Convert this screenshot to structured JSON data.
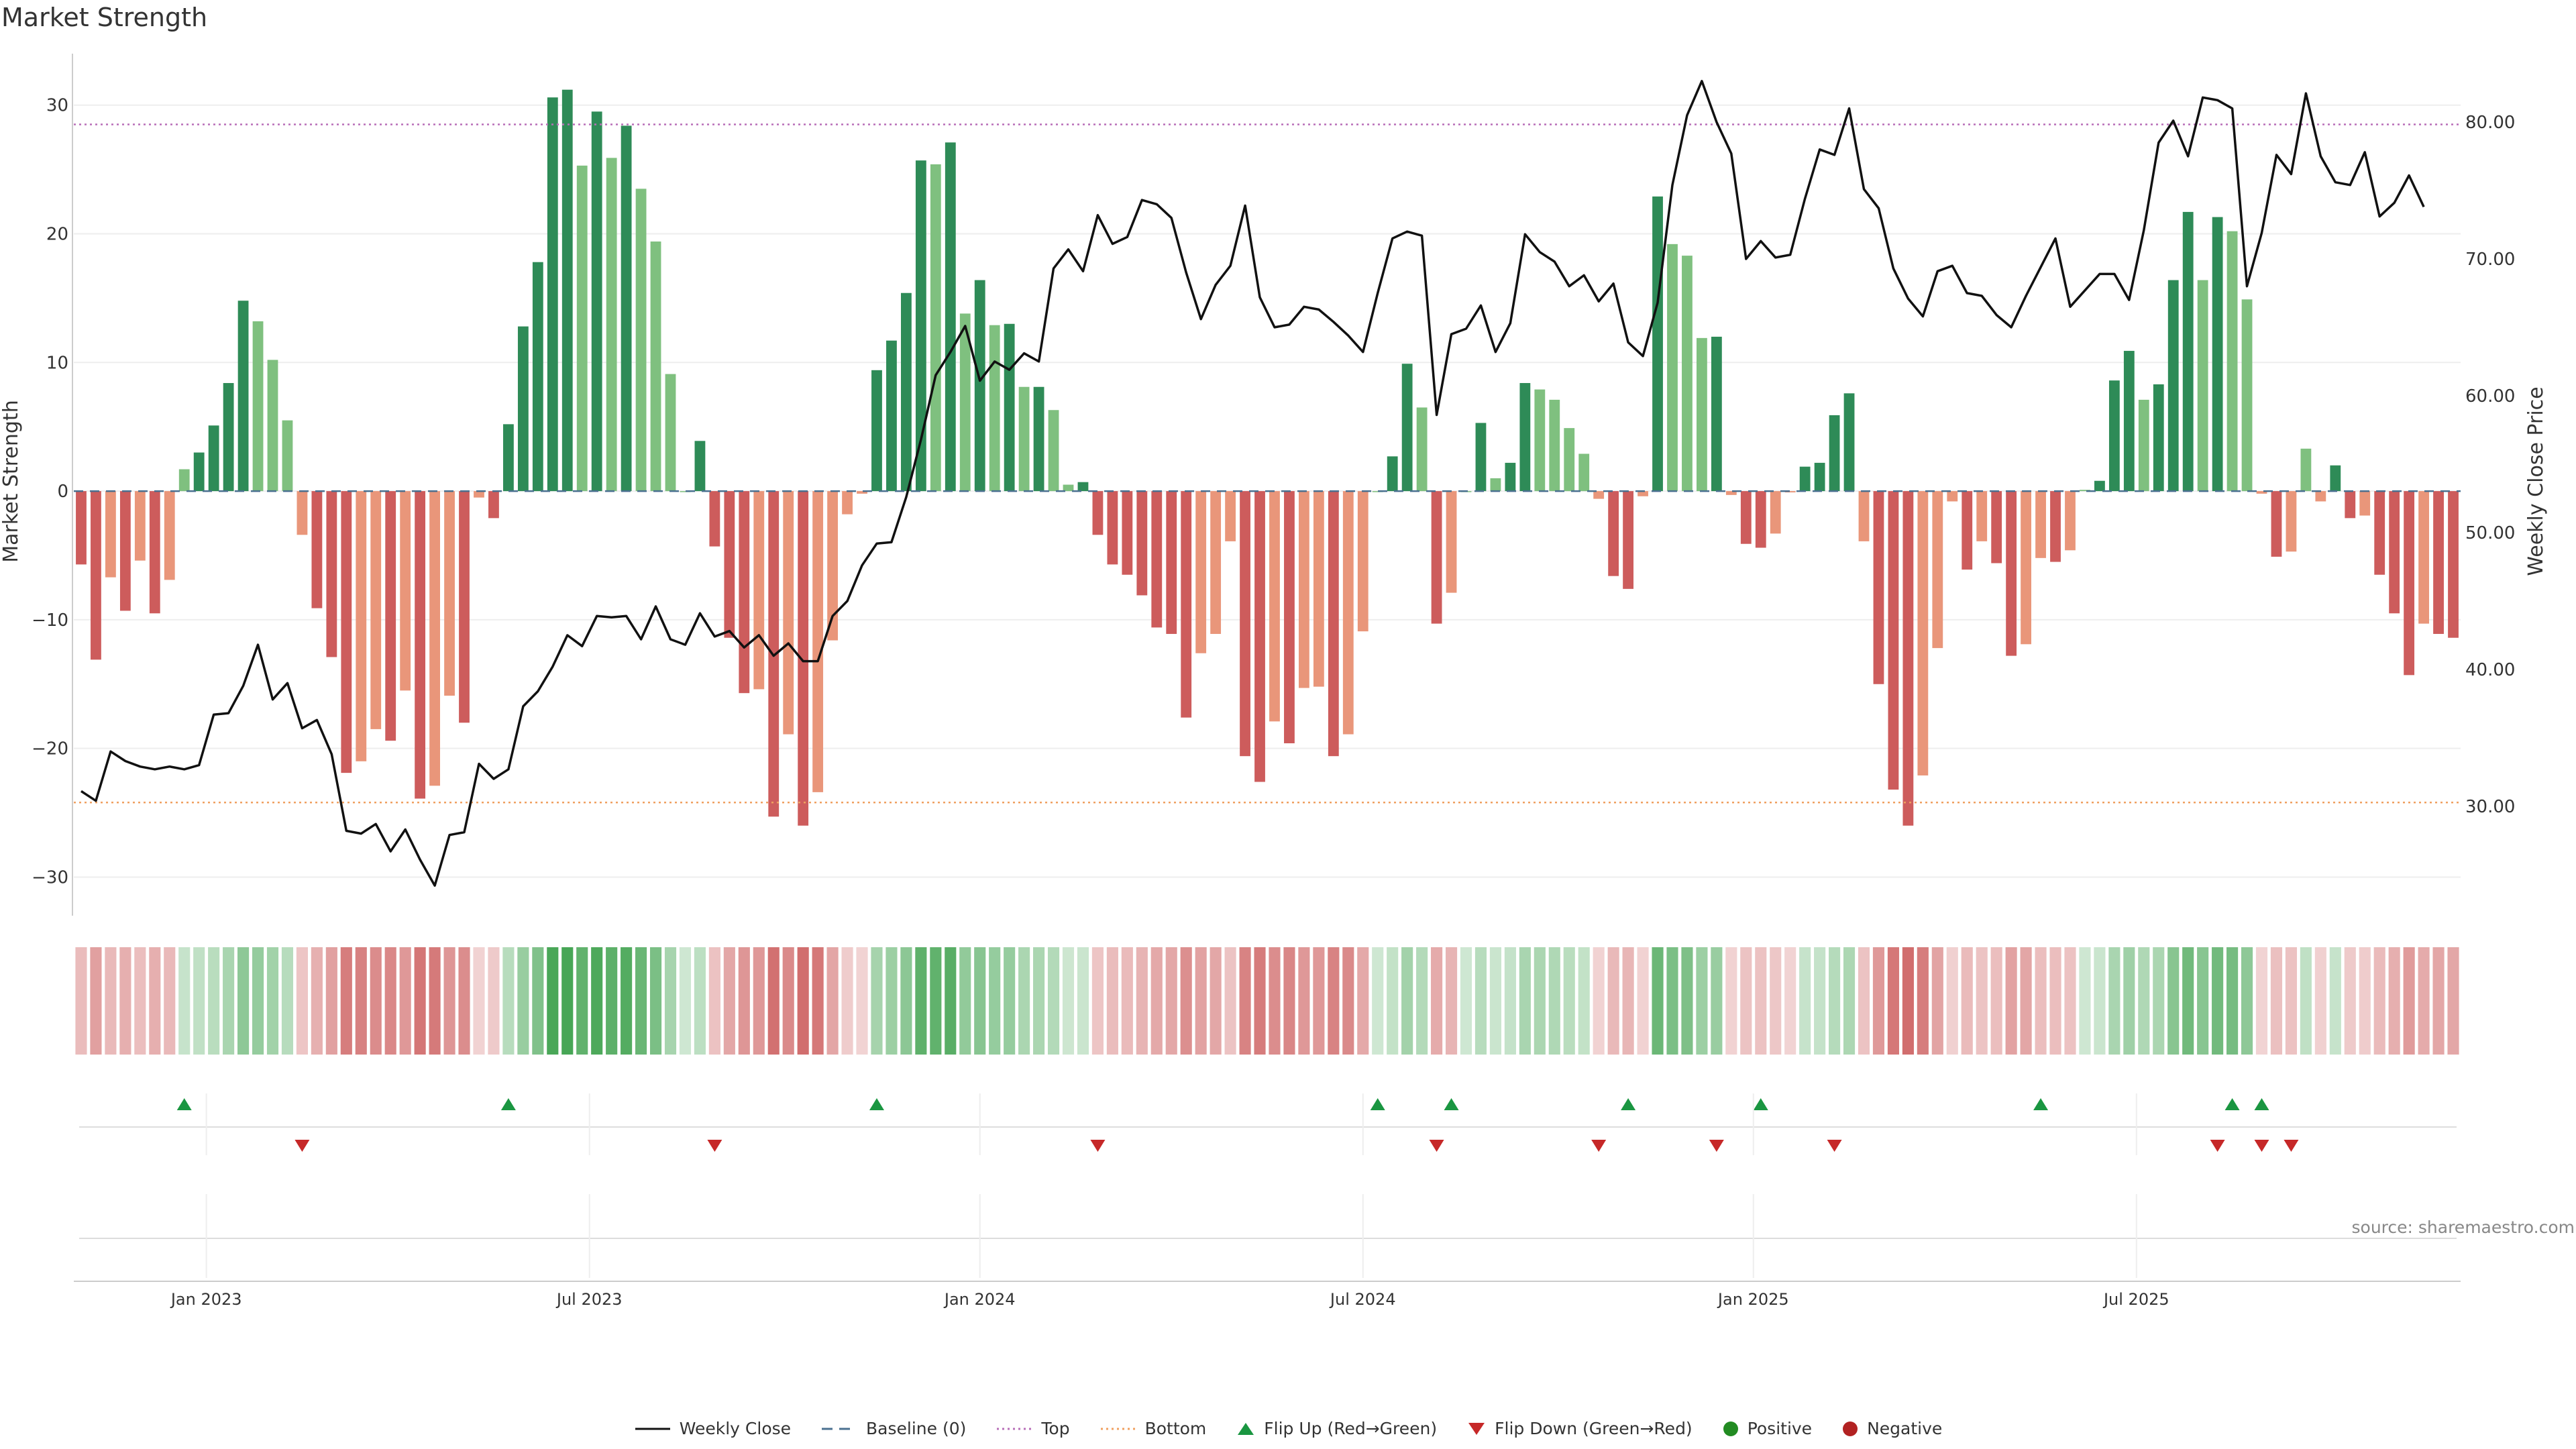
{
  "title": "Market Strength",
  "source": "source: sharemaestro.com",
  "chart_data": {
    "type": "bar+line",
    "title": "Market Strength",
    "ylabel_left": "Market Strength",
    "ylabel_right": "Weekly Close Price",
    "ylim_left": [
      -33,
      34
    ],
    "ylim_right": [
      22,
      85
    ],
    "yticks_left": [
      30,
      20,
      10,
      0,
      -10,
      -20,
      -30
    ],
    "yticks_left_labels": [
      "30",
      "20",
      "10",
      "0",
      "−10",
      "−20",
      "−30"
    ],
    "yticks_right": [
      80,
      70,
      60,
      50,
      40,
      30
    ],
    "yticks_right_labels": [
      "80.00",
      "70.00",
      "60.00",
      "50.00",
      "40.00",
      "30.00"
    ],
    "xticks": [
      {
        "week": 8.5,
        "label": "Jan 2023"
      },
      {
        "week": 34.5,
        "label": "Jul 2023"
      },
      {
        "week": 61,
        "label": "Jan 2024"
      },
      {
        "week": 87,
        "label": "Jul 2024"
      },
      {
        "week": 113.5,
        "label": "Jan 2025"
      },
      {
        "week": 139.5,
        "label": "Jul 2025"
      }
    ],
    "top_line": 28.5,
    "bottom_line": -24.2,
    "bars": [
      -5.7,
      -13.1,
      -6.7,
      -9.3,
      -5.4,
      -9.5,
      -6.9,
      1.7,
      3.0,
      5.1,
      8.4,
      14.8,
      13.2,
      10.2,
      5.5,
      -3.4,
      -9.1,
      -12.9,
      -21.9,
      -21.0,
      -18.5,
      -19.4,
      -15.5,
      -23.9,
      -22.9,
      -15.9,
      -18.0,
      -0.5,
      -2.1,
      5.2,
      12.8,
      17.8,
      30.6,
      31.2,
      25.3,
      29.5,
      25.9,
      28.4,
      23.5,
      19.4,
      9.1,
      0.0,
      3.9,
      -4.3,
      -11.4,
      -15.7,
      -15.4,
      -25.3,
      -18.9,
      -26.0,
      -23.4,
      -11.6,
      -1.8,
      -0.2,
      9.4,
      11.7,
      15.4,
      25.7,
      25.4,
      27.1,
      13.8,
      16.4,
      12.9,
      13.0,
      8.1,
      8.1,
      6.3,
      0.5,
      0.7,
      -3.4,
      -5.7,
      -6.5,
      -8.1,
      -10.6,
      -11.1,
      -17.6,
      -12.6,
      -11.1,
      -3.9,
      -20.6,
      -22.6,
      -17.9,
      -19.6,
      -15.3,
      -15.2,
      -20.6,
      -18.9,
      -10.9,
      0.0,
      2.7,
      9.9,
      6.5,
      -10.3,
      -7.9,
      0.0,
      5.3,
      1.0,
      2.2,
      8.4,
      7.9,
      7.1,
      4.9,
      2.9,
      -0.6,
      -6.6,
      -7.6,
      -0.4,
      22.9,
      19.2,
      18.3,
      11.9,
      12.0,
      -0.3,
      -4.1,
      -4.4,
      -3.3,
      -0.1,
      1.9,
      2.2,
      5.9,
      7.6,
      -3.9,
      -15.0,
      -23.2,
      -26.0,
      -22.1,
      -12.2,
      -0.8,
      -6.1,
      -3.9,
      -5.6,
      -12.8,
      -11.9,
      -5.2,
      -5.5,
      -4.6,
      0.1,
      0.8,
      8.6,
      10.9,
      7.1,
      8.3,
      16.4,
      21.7,
      16.4,
      21.3,
      20.2,
      14.9,
      -0.2,
      -5.1,
      -4.7,
      3.3,
      -0.8,
      2.0,
      -2.1,
      -1.9,
      -6.5,
      -9.5,
      -14.3,
      -10.3,
      -11.1,
      -11.4
    ],
    "weekly_close": [
      31.1,
      30.4,
      34.0,
      33.3,
      32.9,
      32.7,
      32.9,
      32.7,
      33.0,
      36.7,
      36.8,
      38.8,
      41.8,
      37.8,
      39.0,
      35.7,
      36.3,
      33.8,
      28.2,
      28.0,
      28.7,
      26.7,
      28.3,
      26.1,
      24.2,
      27.9,
      28.1,
      33.1,
      32.0,
      32.7,
      37.3,
      38.4,
      40.2,
      42.5,
      41.7,
      43.9,
      43.8,
      43.9,
      42.2,
      44.6,
      42.2,
      41.8,
      44.1,
      42.4,
      42.8,
      41.6,
      42.5,
      41.0,
      41.9,
      40.6,
      40.6,
      43.9,
      45.0,
      47.6,
      49.2,
      49.3,
      52.6,
      56.8,
      61.5,
      63.2,
      65.1,
      61.1,
      62.5,
      61.9,
      63.1,
      62.5,
      69.3,
      70.7,
      69.1,
      73.2,
      71.1,
      71.6,
      74.3,
      74.0,
      73.0,
      69.0,
      65.6,
      68.1,
      69.5,
      73.9,
      67.2,
      65.0,
      65.2,
      66.5,
      66.3,
      65.4,
      64.4,
      63.2,
      67.5,
      71.5,
      72.0,
      71.7,
      58.6,
      64.5,
      64.9,
      66.6,
      63.2,
      65.3,
      71.8,
      70.5,
      69.8,
      68.0,
      68.8,
      66.9,
      68.2,
      63.9,
      62.9,
      66.8,
      75.4,
      80.5,
      83.0,
      80.0,
      77.7,
      70.0,
      71.3,
      70.1,
      70.3,
      74.4,
      78.0,
      77.6,
      81.0,
      75.1,
      73.7,
      69.3,
      67.1,
      65.8,
      69.1,
      69.5,
      67.5,
      67.3,
      65.9,
      65.0,
      67.3,
      69.4,
      71.5,
      66.5,
      67.7,
      68.9,
      68.9,
      67.0,
      72.1,
      78.5,
      80.1,
      77.5,
      81.8,
      81.6,
      81.0,
      68.0,
      71.9,
      77.6,
      76.2,
      82.1,
      77.5,
      75.6,
      75.4,
      77.8,
      73.1,
      74.1,
      76.1,
      73.8
    ],
    "flip_up_weeks": [
      7,
      29,
      54,
      88,
      93,
      105,
      114,
      133,
      146,
      148
    ],
    "flip_down_weeks": [
      15,
      43,
      69,
      92,
      103,
      111,
      119,
      145,
      148,
      150
    ],
    "axis_colors": {
      "grid": "#eeeeee",
      "axis": "#cccccc",
      "text": "#333333"
    },
    "colors": {
      "positive_dark": "#2e8b57",
      "positive_light": "#7fc07f",
      "negative_dark": "#cd5c5c",
      "negative_light": "#e9967a",
      "line": "#111111",
      "baseline": "#4a7090",
      "top": "#b86fb8",
      "bottom": "#f0a060",
      "flip_up": "#1a9641",
      "flip_down": "#c62828",
      "positive_dot": "#228b22",
      "negative_dot": "#b22222"
    }
  },
  "legend": {
    "weekly_close": "Weekly Close",
    "baseline": "Baseline (0)",
    "top": "Top",
    "bottom": "Bottom",
    "flip_up": "Flip Up (Red→Green)",
    "flip_down": "Flip Down (Green→Red)",
    "positive": "Positive",
    "negative": "Negative"
  }
}
